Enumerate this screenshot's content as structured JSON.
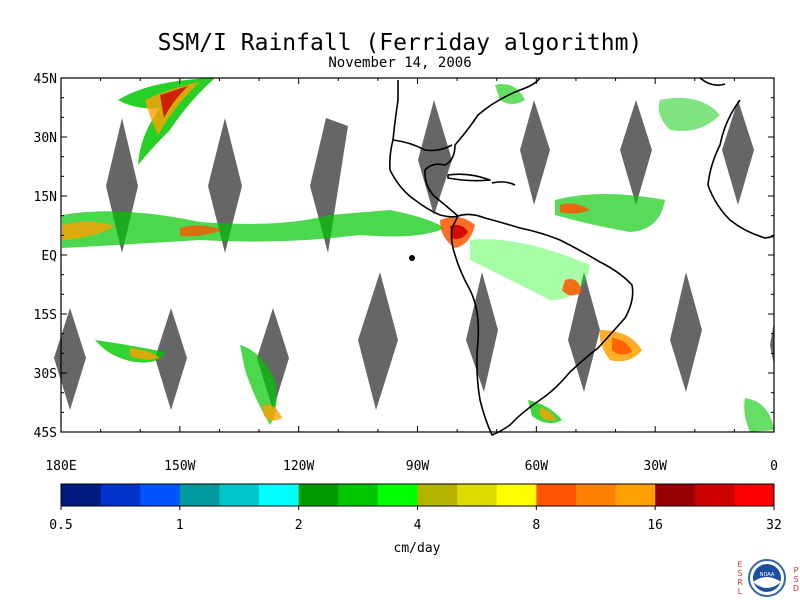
{
  "title": "SSM/I Rainfall (Ferriday algorithm)",
  "subtitle": "November 14, 2006",
  "lat_ticks": [
    {
      "label": "45N",
      "lat": 45
    },
    {
      "label": "30N",
      "lat": 30
    },
    {
      "label": "15N",
      "lat": 15
    },
    {
      "label": "EQ",
      "lat": 0
    },
    {
      "label": "15S",
      "lat": -15
    },
    {
      "label": "30S",
      "lat": -30
    },
    {
      "label": "45S",
      "lat": -45
    }
  ],
  "lon_ticks": [
    {
      "label": "180E",
      "lon": -180
    },
    {
      "label": "150W",
      "lon": -150
    },
    {
      "label": "120W",
      "lon": -120
    },
    {
      "label": "90W",
      "lon": -90
    },
    {
      "label": "60W",
      "lon": -60
    },
    {
      "label": "30W",
      "lon": -30
    },
    {
      "label": "0",
      "lon": 0
    }
  ],
  "map_extent": {
    "lon": [
      -180,
      0
    ],
    "lat": [
      -45,
      45
    ]
  },
  "colorbar": {
    "unit_label": "cm/day",
    "colors": [
      "#001a80",
      "#0033cc",
      "#0055ff",
      "#00999c",
      "#00c8c8",
      "#00ffff",
      "#009900",
      "#00c800",
      "#00ff00",
      "#b4b400",
      "#dcdc00",
      "#ffff00",
      "#ff5500",
      "#ff8000",
      "#ffa000",
      "#990000",
      "#cc0000",
      "#ff0000"
    ],
    "labels": [
      "0.5",
      "1",
      "2",
      "4",
      "8",
      "16",
      "32"
    ]
  },
  "logo": {
    "left_letters": "ESRL",
    "right_letters": "PSD",
    "center_text": "NOAA"
  },
  "gap_color": "#666666"
}
